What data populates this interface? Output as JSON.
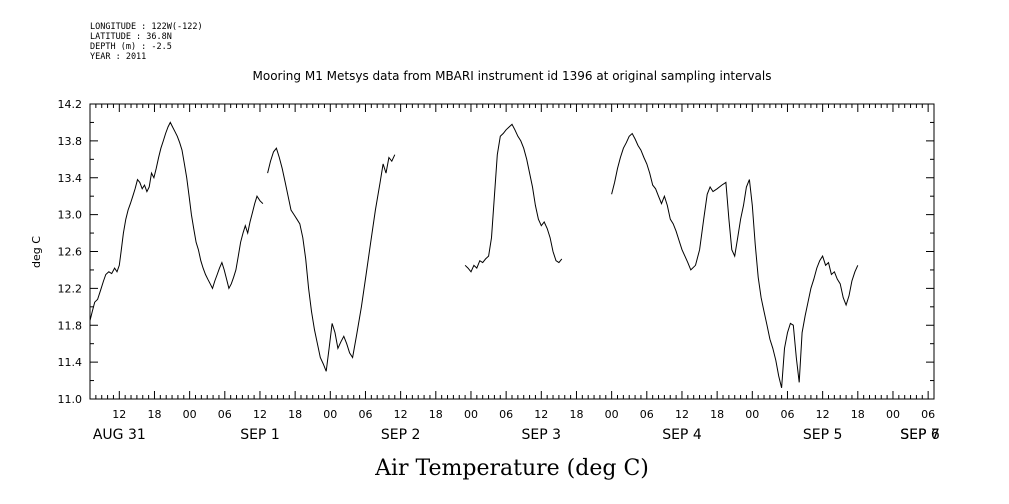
{
  "meta": {
    "longitude": "LONGITUDE : 122W(-122)",
    "latitude": "LATITUDE : 36.8N",
    "depth": "DEPTH (m) : -2.5",
    "year": "YEAR : 2011"
  },
  "chart_data": {
    "type": "line",
    "title": "Mooring M1 Metsys data from MBARI instrument id 1396 at original sampling intervals",
    "xlabel": "Air Temperature (deg C)",
    "ylabel": "deg C",
    "ylim": [
      11.0,
      14.2
    ],
    "yticks": [
      11.0,
      11.4,
      11.8,
      12.2,
      12.6,
      13.0,
      13.4,
      13.8,
      14.2
    ],
    "ytick_labels": [
      "11.0",
      "11.4",
      "11.8",
      "12.2",
      "12.6",
      "13.0",
      "13.4",
      "13.8",
      "14.2"
    ],
    "x_unit": "hours since 2011-08-31 00:00",
    "xlim": [
      7,
      151
    ],
    "hour_ticks": [
      {
        "x": 12,
        "label": "12"
      },
      {
        "x": 18,
        "label": "18"
      },
      {
        "x": 24,
        "label": "00"
      },
      {
        "x": 30,
        "label": "06"
      },
      {
        "x": 36,
        "label": "12"
      },
      {
        "x": 42,
        "label": "18"
      },
      {
        "x": 48,
        "label": "00"
      },
      {
        "x": 54,
        "label": "06"
      },
      {
        "x": 60,
        "label": "12"
      },
      {
        "x": 66,
        "label": "18"
      },
      {
        "x": 72,
        "label": "00"
      },
      {
        "x": 78,
        "label": "06"
      },
      {
        "x": 84,
        "label": "12"
      },
      {
        "x": 90,
        "label": "18"
      },
      {
        "x": 96,
        "label": "00"
      },
      {
        "x": 102,
        "label": "06"
      },
      {
        "x": 108,
        "label": "12"
      },
      {
        "x": 114,
        "label": "18"
      },
      {
        "x": 120,
        "label": "00"
      },
      {
        "x": 126,
        "label": "06"
      },
      {
        "x": 132,
        "label": "12"
      },
      {
        "x": 138,
        "label": "18"
      },
      {
        "x": 144,
        "label": "00"
      },
      {
        "x": 150,
        "label": "06"
      }
    ],
    "day_labels": [
      {
        "x": 12,
        "label": "AUG 31"
      },
      {
        "x": 36,
        "label": "SEP  1"
      },
      {
        "x": 60,
        "label": "SEP  2"
      },
      {
        "x": 84,
        "label": "SEP  3"
      },
      {
        "x": 108,
        "label": "SEP  4"
      },
      {
        "x": 132,
        "label": "SEP  5"
      },
      {
        "x": 156,
        "label": "SEP  6"
      },
      {
        "x": 168,
        "label": "SEP  7"
      }
    ],
    "grid": false,
    "series": [
      {
        "segments": [
          [
            [
              7.0,
              11.85
            ],
            [
              7.4,
              11.95
            ],
            [
              7.8,
              12.05
            ],
            [
              8.3,
              12.08
            ],
            [
              8.8,
              12.18
            ],
            [
              9.3,
              12.28
            ],
            [
              9.7,
              12.35
            ],
            [
              10.2,
              12.38
            ],
            [
              10.7,
              12.36
            ],
            [
              11.2,
              12.42
            ],
            [
              11.6,
              12.38
            ],
            [
              12.0,
              12.45
            ],
            [
              12.3,
              12.6
            ],
            [
              12.7,
              12.8
            ],
            [
              13.1,
              12.95
            ],
            [
              13.5,
              13.05
            ],
            [
              13.9,
              13.12
            ],
            [
              14.3,
              13.2
            ],
            [
              14.7,
              13.28
            ],
            [
              15.1,
              13.38
            ],
            [
              15.5,
              13.35
            ],
            [
              15.9,
              13.28
            ],
            [
              16.3,
              13.32
            ],
            [
              16.7,
              13.25
            ],
            [
              17.1,
              13.3
            ],
            [
              17.5,
              13.45
            ],
            [
              17.9,
              13.4
            ],
            [
              18.3,
              13.5
            ],
            [
              18.7,
              13.62
            ],
            [
              19.1,
              13.72
            ],
            [
              19.5,
              13.8
            ],
            [
              19.9,
              13.88
            ],
            [
              20.3,
              13.95
            ],
            [
              20.7,
              14.0
            ],
            [
              21.1,
              13.95
            ],
            [
              21.5,
              13.9
            ],
            [
              21.9,
              13.85
            ],
            [
              22.3,
              13.78
            ],
            [
              22.7,
              13.7
            ],
            [
              23.1,
              13.55
            ],
            [
              23.5,
              13.4
            ],
            [
              23.9,
              13.2
            ],
            [
              24.3,
              13.0
            ],
            [
              24.7,
              12.85
            ],
            [
              25.1,
              12.7
            ],
            [
              25.5,
              12.62
            ],
            [
              25.9,
              12.5
            ],
            [
              26.3,
              12.42
            ],
            [
              26.7,
              12.35
            ],
            [
              27.1,
              12.3
            ],
            [
              27.5,
              12.25
            ],
            [
              27.9,
              12.2
            ],
            [
              28.3,
              12.28
            ],
            [
              28.7,
              12.35
            ],
            [
              29.1,
              12.42
            ],
            [
              29.5,
              12.48
            ],
            [
              29.9,
              12.4
            ],
            [
              30.3,
              12.3
            ],
            [
              30.7,
              12.2
            ],
            [
              31.1,
              12.25
            ],
            [
              31.5,
              12.32
            ],
            [
              31.9,
              12.4
            ],
            [
              32.3,
              12.55
            ],
            [
              32.7,
              12.7
            ],
            [
              33.1,
              12.8
            ],
            [
              33.5,
              12.88
            ],
            [
              33.9,
              12.8
            ],
            [
              34.3,
              12.92
            ],
            [
              34.7,
              13.02
            ],
            [
              35.1,
              13.12
            ],
            [
              35.5,
              13.2
            ],
            [
              36.0,
              13.15
            ],
            [
              36.5,
              13.12
            ]
          ],
          [
            [
              37.3,
              13.45
            ],
            [
              37.8,
              13.58
            ],
            [
              38.3,
              13.68
            ],
            [
              38.8,
              13.72
            ],
            [
              39.3,
              13.62
            ],
            [
              39.8,
              13.5
            ],
            [
              40.3,
              13.35
            ],
            [
              40.8,
              13.2
            ],
            [
              41.3,
              13.05
            ],
            [
              41.8,
              13.0
            ],
            [
              42.3,
              12.95
            ],
            [
              42.8,
              12.9
            ],
            [
              43.3,
              12.75
            ],
            [
              43.8,
              12.52
            ],
            [
              44.3,
              12.2
            ],
            [
              44.8,
              11.95
            ],
            [
              45.3,
              11.75
            ],
            [
              45.8,
              11.6
            ],
            [
              46.3,
              11.45
            ],
            [
              46.8,
              11.38
            ],
            [
              47.3,
              11.3
            ],
            [
              47.8,
              11.55
            ],
            [
              48.3,
              11.82
            ],
            [
              48.8,
              11.72
            ],
            [
              49.3,
              11.55
            ],
            [
              49.8,
              11.62
            ],
            [
              50.3,
              11.68
            ],
            [
              50.8,
              11.6
            ],
            [
              51.3,
              11.5
            ],
            [
              51.8,
              11.45
            ],
            [
              52.5,
              11.7
            ],
            [
              53.3,
              12.0
            ],
            [
              54.1,
              12.35
            ],
            [
              54.9,
              12.7
            ],
            [
              55.7,
              13.05
            ],
            [
              56.5,
              13.35
            ],
            [
              57.0,
              13.55
            ],
            [
              57.5,
              13.45
            ],
            [
              58.0,
              13.62
            ],
            [
              58.5,
              13.58
            ],
            [
              59.0,
              13.65
            ]
          ],
          [
            [
              71.0,
              12.45
            ],
            [
              71.5,
              12.42
            ],
            [
              72.0,
              12.38
            ],
            [
              72.5,
              12.45
            ],
            [
              73.0,
              12.42
            ],
            [
              73.5,
              12.5
            ],
            [
              74.0,
              12.48
            ],
            [
              74.5,
              12.52
            ],
            [
              75.0,
              12.55
            ],
            [
              75.5,
              12.75
            ],
            [
              76.0,
              13.2
            ],
            [
              76.5,
              13.65
            ],
            [
              77.0,
              13.85
            ],
            [
              77.5,
              13.88
            ],
            [
              78.0,
              13.92
            ],
            [
              78.5,
              13.95
            ],
            [
              79.0,
              13.98
            ],
            [
              79.5,
              13.92
            ],
            [
              80.0,
              13.85
            ],
            [
              80.5,
              13.8
            ],
            [
              81.0,
              13.72
            ],
            [
              81.5,
              13.6
            ],
            [
              82.0,
              13.45
            ],
            [
              82.5,
              13.3
            ],
            [
              83.0,
              13.1
            ],
            [
              83.5,
              12.95
            ],
            [
              84.0,
              12.88
            ],
            [
              84.5,
              12.92
            ],
            [
              85.0,
              12.85
            ],
            [
              85.5,
              12.75
            ],
            [
              86.0,
              12.6
            ],
            [
              86.5,
              12.5
            ],
            [
              87.0,
              12.48
            ],
            [
              87.5,
              12.52
            ]
          ],
          [
            [
              96.0,
              13.22
            ],
            [
              96.5,
              13.35
            ],
            [
              97.0,
              13.5
            ],
            [
              97.5,
              13.62
            ],
            [
              98.0,
              13.72
            ],
            [
              98.5,
              13.78
            ],
            [
              99.0,
              13.85
            ],
            [
              99.5,
              13.88
            ],
            [
              100.0,
              13.82
            ],
            [
              100.5,
              13.75
            ],
            [
              101.0,
              13.7
            ],
            [
              101.5,
              13.62
            ],
            [
              102.0,
              13.55
            ],
            [
              102.5,
              13.45
            ],
            [
              103.0,
              13.32
            ],
            [
              103.5,
              13.28
            ],
            [
              104.0,
              13.2
            ],
            [
              104.5,
              13.12
            ],
            [
              105.0,
              13.2
            ],
            [
              105.5,
              13.1
            ],
            [
              106.0,
              12.95
            ],
            [
              106.5,
              12.9
            ],
            [
              107.0,
              12.82
            ],
            [
              107.5,
              12.72
            ],
            [
              108.0,
              12.62
            ],
            [
              108.5,
              12.55
            ],
            [
              109.0,
              12.48
            ],
            [
              109.5,
              12.4
            ],
            [
              110.3,
              12.45
            ],
            [
              111.0,
              12.62
            ],
            [
              111.7,
              12.95
            ],
            [
              112.3,
              13.22
            ],
            [
              112.8,
              13.3
            ],
            [
              113.3,
              13.25
            ],
            [
              114.0,
              13.28
            ],
            [
              114.8,
              13.32
            ],
            [
              115.5,
              13.35
            ],
            [
              116.0,
              12.95
            ],
            [
              116.5,
              12.62
            ],
            [
              117.0,
              12.55
            ],
            [
              117.5,
              12.75
            ],
            [
              118.0,
              12.95
            ],
            [
              118.5,
              13.1
            ],
            [
              119.0,
              13.3
            ],
            [
              119.5,
              13.38
            ],
            [
              120.0,
              13.1
            ],
            [
              120.5,
              12.68
            ],
            [
              121.0,
              12.32
            ],
            [
              121.5,
              12.1
            ],
            [
              122.0,
              11.95
            ],
            [
              122.5,
              11.8
            ],
            [
              123.0,
              11.65
            ],
            [
              123.5,
              11.55
            ],
            [
              124.0,
              11.42
            ],
            [
              124.5,
              11.25
            ],
            [
              125.0,
              11.12
            ],
            [
              125.5,
              11.55
            ],
            [
              126.0,
              11.72
            ],
            [
              126.5,
              11.82
            ],
            [
              127.0,
              11.8
            ],
            [
              127.5,
              11.45
            ],
            [
              128.0,
              11.18
            ],
            [
              128.5,
              11.72
            ],
            [
              129.0,
              11.9
            ],
            [
              129.5,
              12.05
            ],
            [
              130.0,
              12.2
            ],
            [
              130.5,
              12.3
            ],
            [
              131.0,
              12.42
            ],
            [
              131.5,
              12.5
            ],
            [
              132.0,
              12.55
            ],
            [
              132.5,
              12.45
            ],
            [
              133.0,
              12.48
            ],
            [
              133.5,
              12.35
            ],
            [
              134.0,
              12.38
            ],
            [
              134.5,
              12.3
            ],
            [
              135.0,
              12.25
            ],
            [
              135.5,
              12.1
            ],
            [
              136.0,
              12.02
            ],
            [
              136.5,
              12.12
            ],
            [
              137.0,
              12.28
            ],
            [
              137.5,
              12.38
            ],
            [
              138.0,
              12.45
            ]
          ]
        ]
      }
    ]
  }
}
